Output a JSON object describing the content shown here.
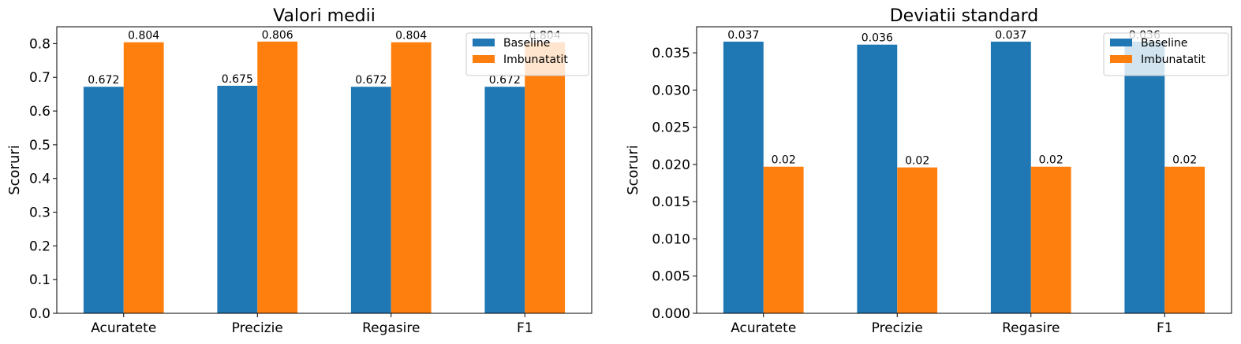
{
  "chart_data": [
    {
      "type": "bar",
      "title": "Valori medii",
      "xlabel": "",
      "ylabel": "Scoruri",
      "categories": [
        "Acuratete",
        "Precizie",
        "Regasire",
        "F1"
      ],
      "ylim": [
        0,
        0.85
      ],
      "yticks": [
        0.0,
        0.1,
        0.2,
        0.3,
        0.4,
        0.5,
        0.6,
        0.7,
        0.8
      ],
      "ytick_labels": [
        "0.0",
        "0.1",
        "0.2",
        "0.3",
        "0.4",
        "0.5",
        "0.6",
        "0.7",
        "0.8"
      ],
      "legend_position": "top-right",
      "series": [
        {
          "name": "Baseline",
          "color": "#1f77b4",
          "values": [
            0.672,
            0.675,
            0.672,
            0.672
          ],
          "labels": [
            "0.672",
            "0.675",
            "0.672",
            "0.672"
          ]
        },
        {
          "name": "Imbunatatit",
          "color": "#ff7f0e",
          "values": [
            0.804,
            0.806,
            0.804,
            0.804
          ],
          "labels": [
            "0.804",
            "0.806",
            "0.804",
            "0.804"
          ]
        }
      ]
    },
    {
      "type": "bar",
      "title": "Deviatii standard",
      "xlabel": "",
      "ylabel": "Scoruri",
      "categories": [
        "Acuratete",
        "Precizie",
        "Regasire",
        "F1"
      ],
      "ylim": [
        0,
        0.0385
      ],
      "yticks": [
        0.0,
        0.005,
        0.01,
        0.015,
        0.02,
        0.025,
        0.03,
        0.035
      ],
      "ytick_labels": [
        "0.000",
        "0.005",
        "0.010",
        "0.015",
        "0.020",
        "0.025",
        "0.030",
        "0.035"
      ],
      "legend_position": "top-right",
      "series": [
        {
          "name": "Baseline",
          "color": "#1f77b4",
          "values": [
            0.0365,
            0.0361,
            0.0365,
            0.0365
          ],
          "labels": [
            "0.037",
            "0.036",
            "0.037",
            "0.036"
          ]
        },
        {
          "name": "Imbunatatit",
          "color": "#ff7f0e",
          "values": [
            0.0197,
            0.0196,
            0.0197,
            0.0197
          ],
          "labels": [
            "0.02",
            "0.02",
            "0.02",
            "0.02"
          ]
        }
      ]
    }
  ]
}
